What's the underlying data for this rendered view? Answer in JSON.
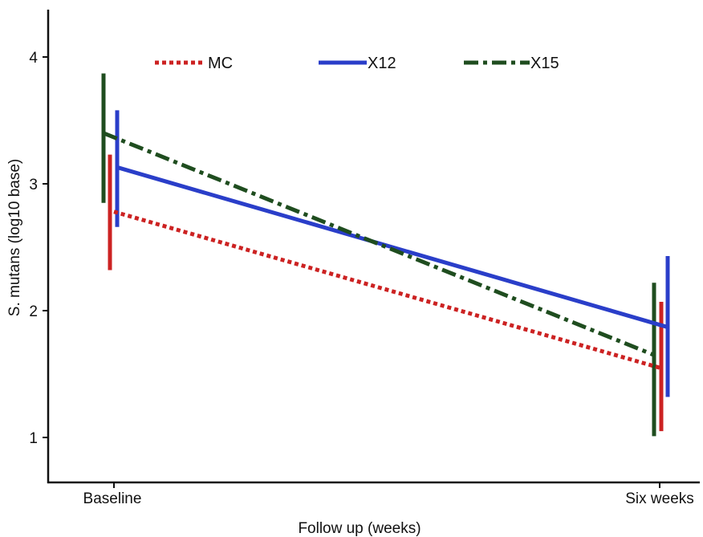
{
  "chart_data": {
    "type": "line",
    "title": "",
    "xlabel": "Follow up (weeks)",
    "ylabel": "S. mutans (log10 base)",
    "categories": [
      "Baseline",
      "Six weeks"
    ],
    "y_ticks": [
      1,
      2,
      3,
      4
    ],
    "y_tick_labels": [
      "1",
      "2",
      "3",
      "4"
    ],
    "ylim": [
      0.75,
      4.4
    ],
    "grid": false,
    "legend_position": "top",
    "series": [
      {
        "name": "MC",
        "color": "#cc2222",
        "style": "dotted",
        "values": [
          2.78,
          1.55
        ],
        "error_bars": [
          [
            2.32,
            3.23
          ],
          [
            1.05,
            2.07
          ]
        ]
      },
      {
        "name": "X12",
        "color": "#2a3ec9",
        "style": "solid",
        "values": [
          3.13,
          1.87
        ],
        "error_bars": [
          [
            2.66,
            3.58
          ],
          [
            1.32,
            2.43
          ]
        ]
      },
      {
        "name": "X15",
        "color": "#1f4d1f",
        "style": "dashdot",
        "values": [
          3.4,
          1.65
        ],
        "error_bars": [
          [
            2.85,
            3.87
          ],
          [
            1.01,
            2.22
          ]
        ]
      }
    ]
  }
}
